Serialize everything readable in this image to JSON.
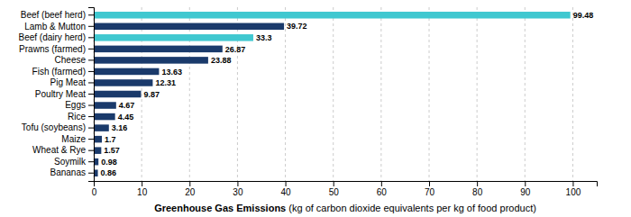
{
  "chart_data": {
    "type": "bar",
    "orientation": "horizontal",
    "categories": [
      "Bananas",
      "Soymilk",
      "Wheat & Rye",
      "Maize",
      "Tofu (soybeans)",
      "Rice",
      "Eggs",
      "Poultry Meat",
      "Pig Meat",
      "Fish (farmed)",
      "Cheese",
      "Prawns (farmed)",
      "Beef (dairy herd)",
      "Lamb & Mutton",
      "Beef (beef herd)"
    ],
    "values": [
      0.86,
      0.98,
      1.57,
      1.7,
      3.16,
      4.45,
      4.67,
      9.87,
      12.31,
      13.63,
      23.88,
      26.87,
      33.3,
      39.72,
      99.48
    ],
    "colors": [
      "#1a3a6b",
      "#1a3a6b",
      "#1a3a6b",
      "#1a3a6b",
      "#1a3a6b",
      "#1a3a6b",
      "#1a3a6b",
      "#1a3a6b",
      "#1a3a6b",
      "#1a3a6b",
      "#1a3a6b",
      "#1a3a6b",
      "#40c8d0",
      "#1a3a6b",
      "#40c8d0"
    ],
    "xlabel": [
      "Greenhouse Gas Emissions",
      " (kg of carbon dioxide equivalents per kg of food product)"
    ],
    "xlim": [
      0,
      105
    ],
    "xticks": [
      0,
      10,
      20,
      30,
      40,
      50,
      60,
      70,
      80,
      90,
      100
    ],
    "grid": true,
    "data_labels": true
  }
}
